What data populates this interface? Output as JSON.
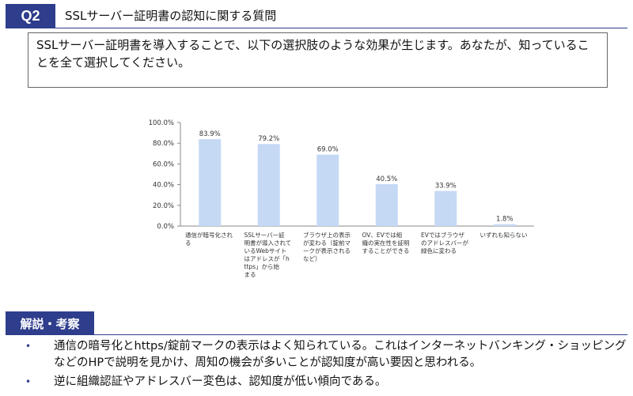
{
  "header": {
    "badge": "Q2",
    "title": "SSLサーバー証明書の認知に関する質問"
  },
  "question": {
    "text": "SSLサーバー証明書を導入することで、以下の選択肢のような効果が生じます。あなたが、知っていることを全て選択してください。"
  },
  "chart_data": {
    "type": "bar",
    "categories": [
      "通信が暗号化される",
      "SSLサーバー証明書が導入されているWebサイトはアドレスが「https」から始まる",
      "ブラウザ上の表示が変わる（錠前マークが表示されるなど）",
      "OV、EVでは組織の実在性を証明することができる",
      "EVではブラウザのアドレスバーが緑色に変わる",
      "いずれも知らない"
    ],
    "values": [
      83.9,
      79.2,
      69.0,
      40.5,
      33.9,
      1.8
    ],
    "value_labels": [
      "83.9%",
      "79.2%",
      "69.0%",
      "40.5%",
      "33.9%",
      "1.8%"
    ],
    "yticks": [
      "0.0%",
      "20.0%",
      "40.0%",
      "60.0%",
      "80.0%",
      "100.0%"
    ],
    "ylim": [
      0,
      100
    ],
    "grid": false,
    "bar_color": "#c5d9f5"
  },
  "analysis": {
    "badge": "解説・考察",
    "bullets": [
      "通信の暗号化とhttps/錠前マークの表示はよく知られている。これはインターネットバンキング・ショッピングなどのHPで説明を見かけ、周知の機会が多いことが認知度が高い要因と思われる。",
      "逆に組織認証やアドレスバー変色は、認知度が低い傾向である。"
    ]
  }
}
